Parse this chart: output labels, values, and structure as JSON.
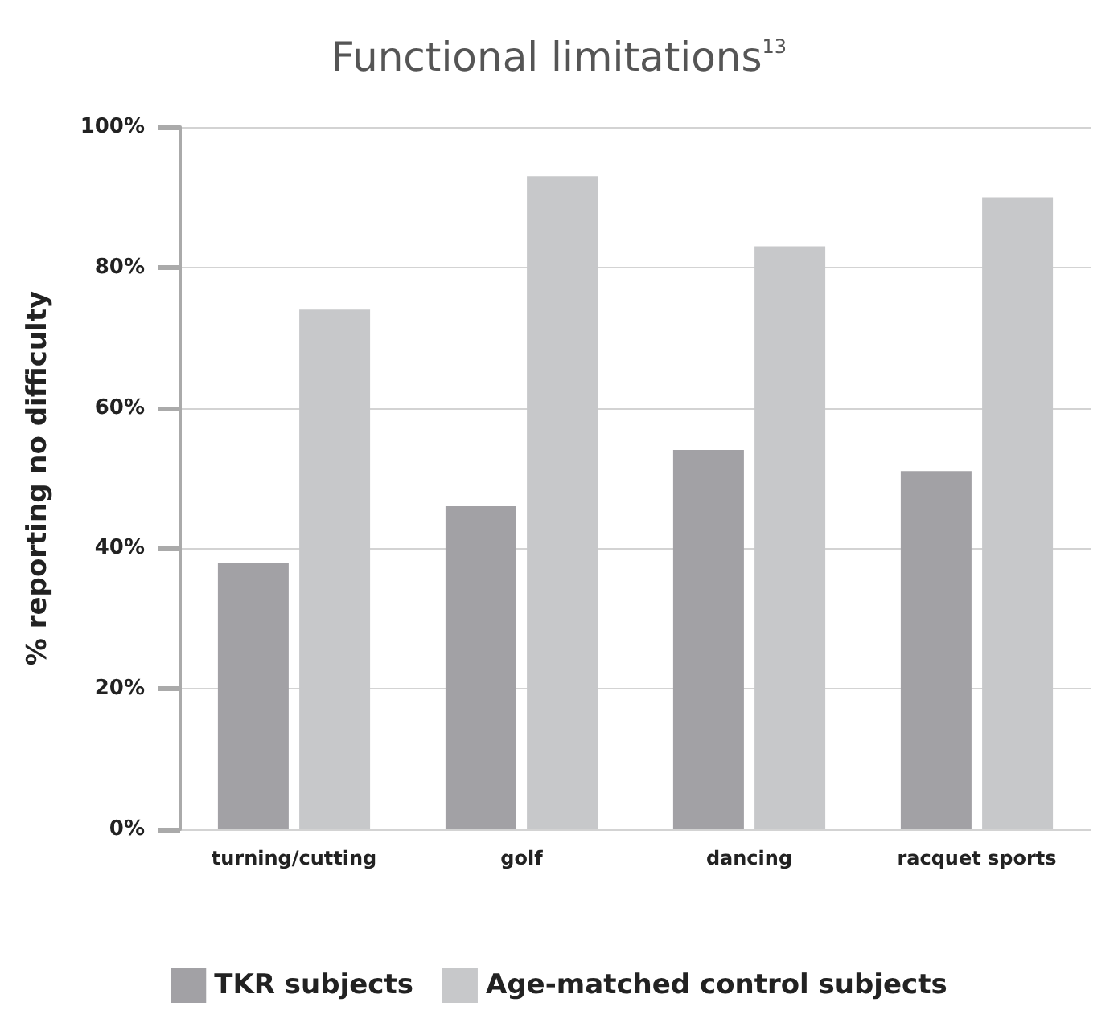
{
  "chart_data": {
    "type": "bar",
    "title": "Functional limitations$^{13}$",
    "ylabel": "% reporting no difficulty",
    "categories": [
      "turning/cutting",
      "golf",
      "dancing",
      "racquet sports"
    ],
    "series": [
      {
        "name": "TKR subjects",
        "color": "#a2a1a5",
        "values": [
          38,
          46,
          54,
          51
        ]
      },
      {
        "name": "Age-matched control subjects",
        "color": "#c7c8ca",
        "values": [
          74,
          93,
          83,
          90
        ]
      }
    ],
    "ylim": [
      0,
      100
    ],
    "yticks": [
      {
        "value": 0,
        "label": "0%"
      },
      {
        "value": 20,
        "label": "20%"
      },
      {
        "value": 40,
        "label": "40%"
      },
      {
        "value": 60,
        "label": "60%"
      },
      {
        "value": 80,
        "label": "80%"
      },
      {
        "value": 100,
        "label": "100%"
      }
    ],
    "grid": "y",
    "legend": "bottom"
  }
}
